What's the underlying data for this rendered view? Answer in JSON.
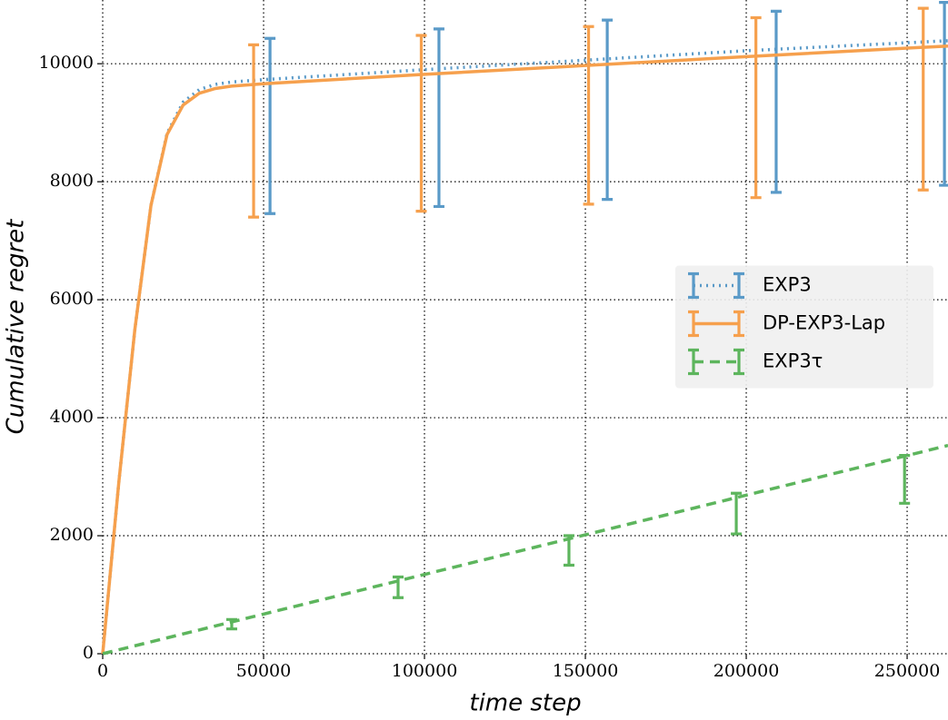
{
  "chart_data": {
    "type": "line",
    "xlabel": "time step",
    "ylabel": "Cumulative regret",
    "xlim": [
      0,
      262700
    ],
    "ylim": [
      0,
      11080
    ],
    "xticks": [
      0,
      50000,
      100000,
      150000,
      200000,
      250000
    ],
    "yticks": [
      0,
      2000,
      4000,
      6000,
      8000,
      10000
    ],
    "grid": true,
    "legend": "center right",
    "series": [
      {
        "name": "EXP3",
        "color": "#5a9ac8",
        "linestyle": "dotted",
        "x": [
          0,
          5000,
          10000,
          15000,
          20000,
          25000,
          30000,
          35000,
          40000,
          50000,
          100000,
          150000,
          200000,
          262700
        ],
        "values": [
          0,
          2900,
          5500,
          7600,
          8820,
          9350,
          9560,
          9650,
          9690,
          9730,
          9900,
          10060,
          10220,
          10390
        ],
        "errorbars": {
          "x": [
            52000,
            104500,
            156800,
            209300,
            261600
          ],
          "values": [
            8945,
            9085,
            9220,
            9355,
            9490
          ],
          "errors": [
            1485,
            1505,
            1520,
            1535,
            1550
          ]
        }
      },
      {
        "name": "DP-EXP3-Lap",
        "color": "#f6a04d",
        "linestyle": "solid",
        "x": [
          0,
          5000,
          10000,
          15000,
          20000,
          25000,
          30000,
          35000,
          40000,
          50000,
          100000,
          150000,
          200000,
          262700
        ],
        "values": [
          0,
          2900,
          5500,
          7600,
          8800,
          9300,
          9500,
          9580,
          9620,
          9660,
          9820,
          9970,
          10120,
          10300
        ],
        "errorbars": {
          "x": [
            46900,
            99000,
            151000,
            203000,
            255000
          ],
          "values": [
            8860,
            8990,
            9125,
            9255,
            9400
          ],
          "errors": [
            1460,
            1490,
            1505,
            1525,
            1540
          ]
        }
      },
      {
        "name": "EXP3τ",
        "color": "#5db55d",
        "linestyle": "dashed",
        "x": [
          0,
          262700
        ],
        "values": [
          0,
          3530
        ],
        "errorbars": {
          "x": [
            40100,
            91800,
            144900,
            196900,
            249200
          ],
          "values": [
            500,
            1125,
            1750,
            2375,
            2955
          ],
          "errors": [
            80,
            175,
            250,
            345,
            405
          ]
        }
      }
    ]
  }
}
